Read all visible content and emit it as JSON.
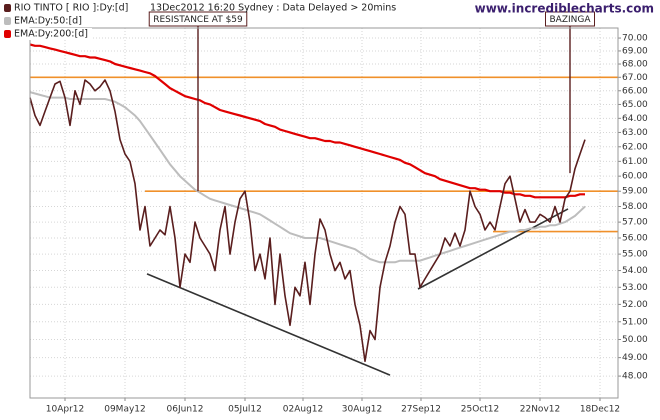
{
  "chart_data": {
    "type": "line",
    "subtitle": "13Dec2012 16:20 Sydney : Data Delayed > 20mins",
    "source": "www.incrediblecharts.com",
    "log": true,
    "grid": true,
    "xlim": [
      0,
      117.6
    ],
    "ylim": [
      46.84,
      70.79
    ],
    "xticks": [
      {
        "value": 7,
        "label": "10Apr12"
      },
      {
        "value": 19,
        "label": "09May12"
      },
      {
        "value": 31,
        "label": "06Jun12"
      },
      {
        "value": 43,
        "label": "05Jul12"
      },
      {
        "value": 54.6,
        "label": "02Aug12"
      },
      {
        "value": 66.4,
        "label": "30Aug12"
      },
      {
        "value": 78.2,
        "label": "27Sep12"
      },
      {
        "value": 90,
        "label": "25Oct12"
      },
      {
        "value": 102,
        "label": "22Nov12"
      },
      {
        "value": 114,
        "label": "18Dec12"
      }
    ],
    "yticks": [
      {
        "value": 70,
        "label": "70.00"
      },
      {
        "value": 69,
        "label": "69.00"
      },
      {
        "value": 68,
        "label": "68.00"
      },
      {
        "value": 67,
        "label": "67.00"
      },
      {
        "value": 66,
        "label": "66.00"
      },
      {
        "value": 65,
        "label": "65.00"
      },
      {
        "value": 64,
        "label": "64.00"
      },
      {
        "value": 63,
        "label": "63.00"
      },
      {
        "value": 62,
        "label": "62.00"
      },
      {
        "value": 61,
        "label": "61.00"
      },
      {
        "value": 60,
        "label": "60.00"
      },
      {
        "value": 59,
        "label": "59.00"
      },
      {
        "value": 58,
        "label": "58.00"
      },
      {
        "value": 57,
        "label": "57.00"
      },
      {
        "value": 56,
        "label": "56.00"
      },
      {
        "value": 55,
        "label": "55.00"
      },
      {
        "value": 54,
        "label": "54.00"
      },
      {
        "value": 53,
        "label": "53.00"
      },
      {
        "value": 52,
        "label": "52.00"
      },
      {
        "value": 51,
        "label": "51.00"
      },
      {
        "value": 50,
        "label": "50.00"
      },
      {
        "value": 49,
        "label": "49.00"
      },
      {
        "value": 48,
        "label": "48.00"
      }
    ],
    "x": [
      0,
      1,
      2,
      3,
      4,
      5,
      6,
      7,
      8,
      9,
      10,
      11,
      12,
      13,
      14,
      15,
      16,
      17,
      18,
      19,
      20,
      21,
      22,
      23,
      24,
      25,
      26,
      27,
      28,
      29,
      30,
      31,
      32,
      33,
      34,
      35,
      36,
      37,
      38,
      39,
      40,
      41,
      42,
      43,
      44,
      45,
      46,
      47,
      48,
      49,
      50,
      51,
      52,
      53,
      54,
      55,
      56,
      57,
      58,
      59,
      60,
      61,
      62,
      63,
      64,
      65,
      66,
      67,
      68,
      69,
      70,
      71,
      72,
      73,
      74,
      75,
      76,
      77,
      78,
      79,
      80,
      81,
      82,
      83,
      84,
      85,
      86,
      87,
      88,
      89,
      90,
      91,
      92,
      93,
      94,
      95,
      96,
      97,
      98,
      99,
      100,
      101,
      102,
      103,
      104,
      105,
      106,
      107,
      108,
      109,
      110,
      111
    ],
    "series": [
      {
        "name": "RIO TINTO [ RIO ]:Dy:[d]",
        "color": "#5a1e1e",
        "width": 1.6,
        "values": [
          65.5,
          64.2,
          63.5,
          64.5,
          65.5,
          66.5,
          66.7,
          65.5,
          63.5,
          66,
          65,
          66.8,
          66.5,
          66,
          66.3,
          66.8,
          66,
          64.5,
          62.5,
          61.5,
          61,
          59.5,
          56.5,
          58,
          55.5,
          56,
          56.5,
          56.2,
          58,
          56,
          53,
          55,
          54.5,
          57,
          56,
          55.5,
          55,
          54,
          56.5,
          58,
          55,
          57,
          58.5,
          59,
          57,
          54,
          55,
          53.5,
          56,
          52,
          55,
          52.5,
          50.8,
          53,
          52.5,
          54.5,
          52,
          55,
          57.2,
          56.5,
          55,
          54,
          54.5,
          53.5,
          54,
          52,
          50.8,
          48.8,
          50.5,
          50,
          53,
          54.5,
          55.5,
          57,
          58,
          57.5,
          55,
          55,
          53,
          53.5,
          54,
          54.5,
          55,
          56,
          55.5,
          56.3,
          55.5,
          56.5,
          59,
          58,
          57.5,
          56.5,
          57,
          56.5,
          58,
          59.5,
          60,
          58.5,
          57,
          57.8,
          57,
          57,
          57.5,
          57.3,
          57,
          58,
          57,
          58.5,
          59,
          60.5,
          61.5,
          62.5
        ]
      },
      {
        "name": "EMA:Dy:50:[d]",
        "color": "#bdbdbd",
        "width": 2,
        "values": [
          65.9,
          65.8,
          65.7,
          65.6,
          65.5,
          65.5,
          65.5,
          65.5,
          65.4,
          65.4,
          65.4,
          65.4,
          65.4,
          65.4,
          65.4,
          65.4,
          65.3,
          65.2,
          65.0,
          64.8,
          64.5,
          64.2,
          63.8,
          63.3,
          62.8,
          62.3,
          61.8,
          61.3,
          60.8,
          60.4,
          60.0,
          59.7,
          59.4,
          59.1,
          58.9,
          58.7,
          58.5,
          58.4,
          58.3,
          58.2,
          58.1,
          58.0,
          57.9,
          57.8,
          57.7,
          57.6,
          57.5,
          57.3,
          57.1,
          56.9,
          56.7,
          56.5,
          56.3,
          56.2,
          56.1,
          56.0,
          56.0,
          56.0,
          56.0,
          55.9,
          55.8,
          55.7,
          55.6,
          55.5,
          55.4,
          55.3,
          55.1,
          54.9,
          54.7,
          54.6,
          54.5,
          54.5,
          54.5,
          54.5,
          54.6,
          54.6,
          54.6,
          54.6,
          54.6,
          54.7,
          54.8,
          54.9,
          55.0,
          55.1,
          55.2,
          55.3,
          55.4,
          55.5,
          55.6,
          55.7,
          55.8,
          55.9,
          56.0,
          56.1,
          56.2,
          56.3,
          56.4,
          56.4,
          56.5,
          56.5,
          56.6,
          56.6,
          56.7,
          56.7,
          56.8,
          56.8,
          56.9,
          57.0,
          57.2,
          57.4,
          57.7,
          58.0
        ]
      },
      {
        "name": "EMA:Dy:200:[d]",
        "color": "#e00000",
        "width": 2.2,
        "values": [
          69.5,
          69.4,
          69.4,
          69.3,
          69.2,
          69.1,
          69.0,
          68.9,
          68.8,
          68.7,
          68.6,
          68.6,
          68.5,
          68.5,
          68.4,
          68.3,
          68.2,
          68.0,
          67.9,
          67.8,
          67.7,
          67.6,
          67.5,
          67.4,
          67.3,
          67.1,
          66.8,
          66.5,
          66.2,
          66.0,
          65.8,
          65.6,
          65.5,
          65.4,
          65.3,
          65.1,
          65.0,
          64.8,
          64.6,
          64.5,
          64.4,
          64.3,
          64.2,
          64.1,
          64.0,
          63.9,
          63.8,
          63.6,
          63.5,
          63.4,
          63.2,
          63.1,
          63.0,
          62.9,
          62.8,
          62.7,
          62.6,
          62.6,
          62.5,
          62.4,
          62.4,
          62.3,
          62.3,
          62.2,
          62.1,
          62.0,
          61.9,
          61.8,
          61.7,
          61.6,
          61.5,
          61.4,
          61.3,
          61.2,
          61.1,
          60.9,
          60.8,
          60.6,
          60.4,
          60.2,
          60.1,
          60.0,
          59.8,
          59.7,
          59.6,
          59.5,
          59.4,
          59.3,
          59.2,
          59.2,
          59.1,
          59.1,
          59.0,
          59.0,
          59.0,
          58.9,
          58.9,
          58.8,
          58.8,
          58.7,
          58.7,
          58.6,
          58.6,
          58.6,
          58.6,
          58.6,
          58.6,
          58.6,
          58.7,
          58.7,
          58.8,
          58.8
        ]
      }
    ],
    "hlines": [
      {
        "value": 67,
        "x_from": 0,
        "color": "#f0902a"
      },
      {
        "value": 59,
        "x_from": 23,
        "color": "#f0902a"
      },
      {
        "value": 56.4,
        "x_from": 92.6,
        "color": "#f0902a"
      }
    ],
    "trendlines": [
      {
        "x": [
          23.4,
          72
        ],
        "values": [
          53.8,
          48.05
        ],
        "color": "#333333"
      },
      {
        "x": [
          77.6,
          107.6
        ],
        "values": [
          52.9,
          57.85
        ],
        "color": "#333333"
      }
    ],
    "annotations": [
      {
        "text": "RESISTANCE AT $59",
        "x": 33.6,
        "value": 59
      },
      {
        "text": "BAZINGA",
        "x": 108,
        "value": 60.2
      }
    ]
  }
}
